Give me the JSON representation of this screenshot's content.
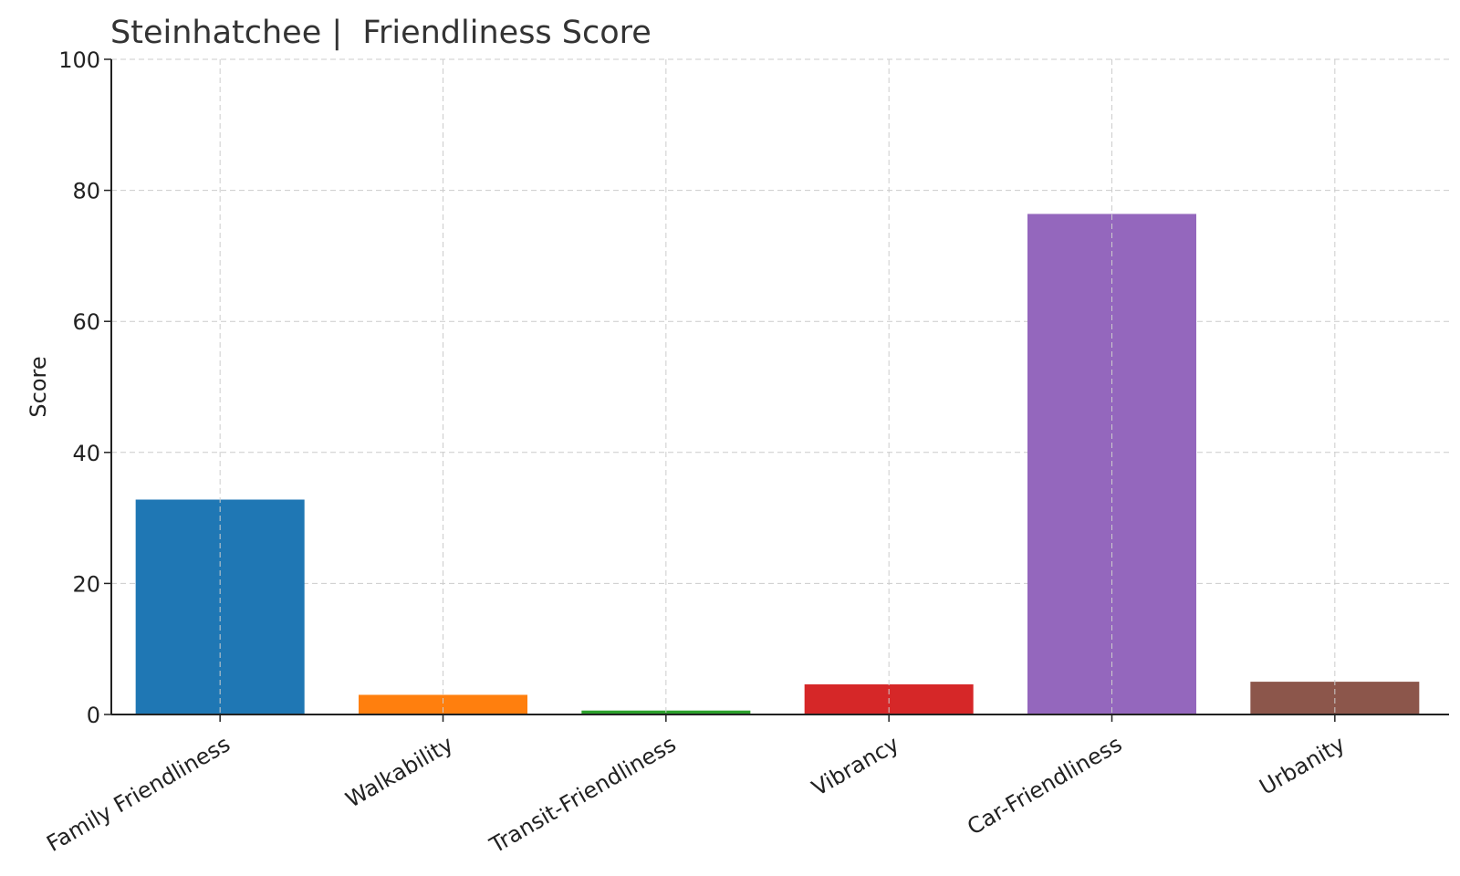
{
  "chart_data": {
    "type": "bar",
    "title": "Steinhatchee |  Friendliness Score",
    "xlabel": "",
    "ylabel": "Score",
    "categories": [
      "Family Friendliness",
      "Walkability",
      "Transit-Friendliness",
      "Vibrancy",
      "Car-Friendliness",
      "Urbanity"
    ],
    "values": [
      32.8,
      3.0,
      0.6,
      4.6,
      76.4,
      5.0
    ],
    "colors": [
      "#1f77b4",
      "#ff7f0e",
      "#2ca02c",
      "#d62728",
      "#9467bd",
      "#8c564b"
    ],
    "ylim": [
      0,
      100
    ],
    "yticks": [
      0,
      20,
      40,
      60,
      80,
      100
    ],
    "grid": true,
    "legend": "none"
  }
}
